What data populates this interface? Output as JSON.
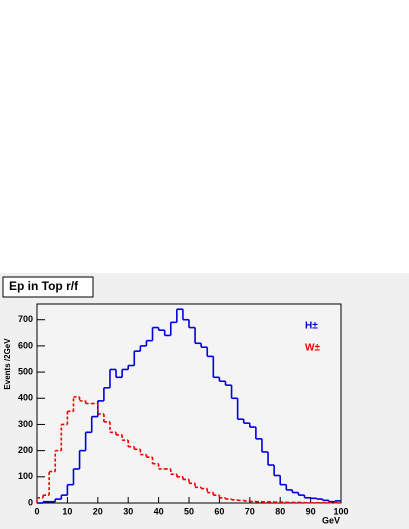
{
  "chart_data": {
    "type": "histogram",
    "title": "Ep in Top r/f",
    "x_label": "GeV",
    "y_label": "Events /2GeV",
    "bins": [
      0,
      2,
      4,
      6,
      8,
      10,
      12,
      14,
      16,
      18,
      20,
      22,
      24,
      26,
      28,
      30,
      32,
      34,
      36,
      38,
      40,
      42,
      44,
      46,
      48,
      50,
      52,
      54,
      56,
      58,
      60,
      62,
      64,
      66,
      68,
      70,
      72,
      74,
      76,
      78,
      80,
      82,
      84,
      86,
      88,
      90,
      92,
      94,
      96,
      98,
      100
    ],
    "series": [
      {
        "name": "H±",
        "color": "#0000dd",
        "dash": false,
        "values": [
          0,
          5,
          5,
          15,
          30,
          70,
          130,
          200,
          270,
          330,
          390,
          440,
          510,
          480,
          510,
          525,
          580,
          600,
          620,
          670,
          660,
          640,
          690,
          740,
          700,
          670,
          610,
          595,
          560,
          480,
          465,
          450,
          400,
          320,
          305,
          290,
          245,
          195,
          145,
          105,
          70,
          50,
          40,
          30,
          20,
          18,
          15,
          10,
          5,
          8
        ]
      },
      {
        "name": "W±",
        "color": "#ee0000",
        "dash": true,
        "values": [
          20,
          30,
          120,
          200,
          300,
          350,
          405,
          390,
          380,
          380,
          340,
          310,
          270,
          260,
          240,
          215,
          205,
          185,
          175,
          150,
          130,
          130,
          110,
          100,
          90,
          75,
          60,
          55,
          40,
          30,
          20,
          15,
          12,
          10,
          8,
          6,
          5,
          4,
          4,
          3,
          3,
          2,
          2,
          2,
          1,
          1,
          1,
          1,
          1,
          1
        ]
      }
    ],
    "xlim": [
      0,
      100
    ],
    "xticks": [
      0,
      10,
      20,
      30,
      40,
      50,
      60,
      70,
      80,
      90,
      100
    ],
    "ylim": [
      0,
      760
    ],
    "yticks": [
      0,
      100,
      200,
      300,
      400,
      500,
      600,
      700
    ]
  }
}
